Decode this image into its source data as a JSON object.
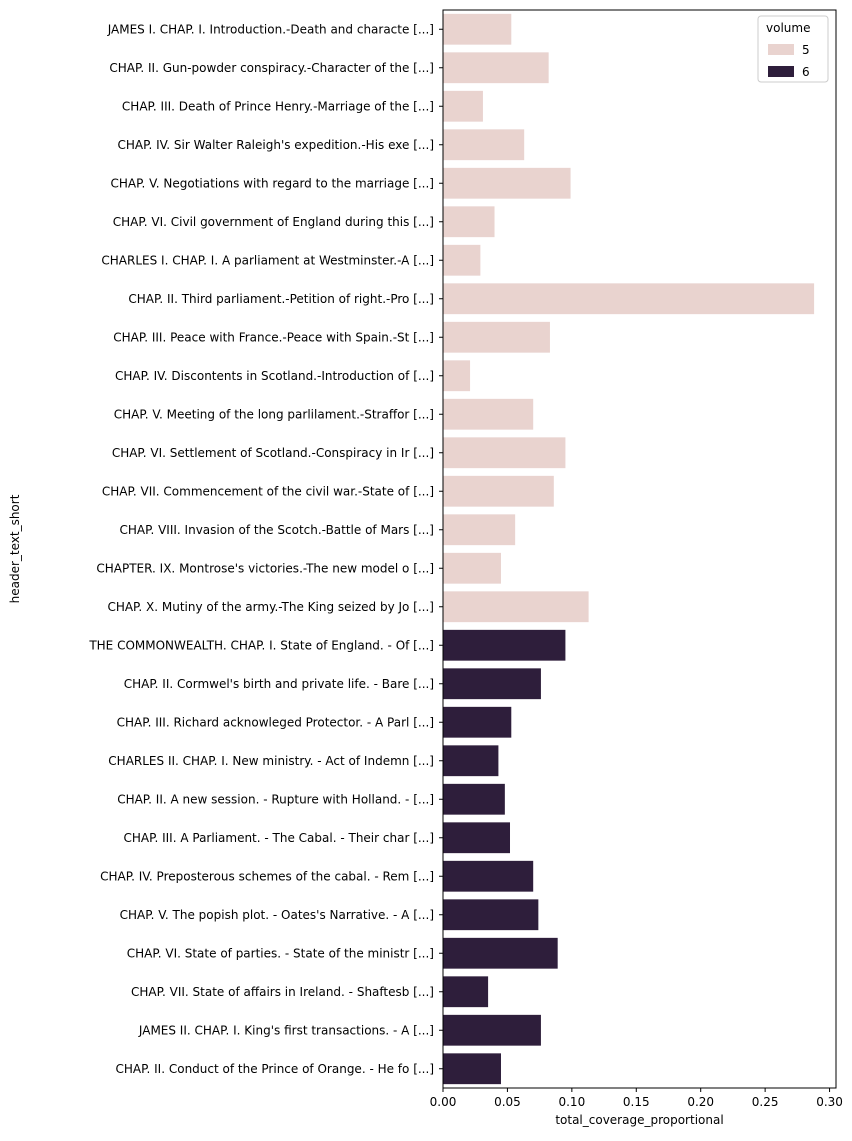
{
  "chart_data": {
    "type": "bar",
    "orientation": "horizontal",
    "xlabel": "total_coverage_proportional",
    "ylabel": "header_text_short",
    "xlim": [
      0,
      0.305
    ],
    "xticks": [
      0.0,
      0.05,
      0.1,
      0.15,
      0.2,
      0.25,
      0.3
    ],
    "xtick_labels": [
      "0.00",
      "0.05",
      "0.10",
      "0.15",
      "0.20",
      "0.25",
      "0.30"
    ],
    "grid": false,
    "legend": {
      "title": "volume",
      "position": "top-right",
      "entries": [
        {
          "label": "5",
          "color": "#e9d3cf"
        },
        {
          "label": "6",
          "color": "#2e1e3b"
        }
      ]
    },
    "categories": [
      "JAMES I. CHAP. I. Introduction.-Death and characte [...]",
      "CHAP. II. Gun-powder conspiracy.-Character of the  [...]",
      "CHAP. III. Death of Prince Henry.-Marriage of the  [...]",
      "CHAP. IV. Sir Walter Raleigh's expedition.-His exe [...]",
      "CHAP. V. Negotiations with regard to the marriage  [...]",
      "CHAP. VI. Civil government of England during this  [...]",
      "CHARLES I. CHAP. I. A parliament at Westminster.-A [...]",
      "CHAP. II. Third parliament.-Petition of right.-Pro [...]",
      "CHAP. III. Peace with France.-Peace with Spain.-St [...]",
      "CHAP. IV. Discontents in Scotland.-Introduction of [...]",
      "CHAP. V. Meeting of the long parlilament.-Straffor [...]",
      "CHAP. VI. Settlement of Scotland.-Conspiracy in Ir [...]",
      "CHAP. VII. Commencement of the civil war.-State of [...]",
      "CHAP. VIII. Invasion of the Scotch.-Battle of Mars [...]",
      "CHAPTER. IX. Montrose's victories.-The new model o [...]",
      "CHAP. X. Mutiny of the army.-The King seized by Jo [...]",
      "THE COMMONWEALTH. CHAP. I. State of England. - Of  [...]",
      "CHAP. II. Cormwel's birth and private life. - Bare [...]",
      "CHAP. III. Richard acknowleged Protector. - A Parl [...]",
      "CHARLES II. CHAP. I. New ministry. - Act of Indemn [...]",
      "CHAP. II. A new session. - Rupture with Holland. - [...]",
      "CHAP. III. A Parliament. - The Cabal. - Their char [...]",
      "CHAP. IV. Preposterous schemes of the cabal. - Rem [...]",
      "CHAP. V. The popish plot. - Oates's Narrative. - A [...]",
      "CHAP. VI. State of parties. - State of the ministr [...]",
      "CHAP. VII. State of affairs in Ireland. - Shaftesb [...]",
      "JAMES II. CHAP. I. King's first transactions. - A  [...]",
      "CHAP. II. Conduct of the Prince of Orange. - He fo [...]"
    ],
    "values": [
      0.053,
      0.082,
      0.031,
      0.063,
      0.099,
      0.04,
      0.029,
      0.288,
      0.083,
      0.021,
      0.07,
      0.095,
      0.086,
      0.056,
      0.045,
      0.113,
      0.095,
      0.076,
      0.053,
      0.043,
      0.048,
      0.052,
      0.07,
      0.074,
      0.089,
      0.035,
      0.076,
      0.045
    ],
    "volume": [
      "5",
      "5",
      "5",
      "5",
      "5",
      "5",
      "5",
      "5",
      "5",
      "5",
      "5",
      "5",
      "5",
      "5",
      "5",
      "5",
      "6",
      "6",
      "6",
      "6",
      "6",
      "6",
      "6",
      "6",
      "6",
      "6",
      "6",
      "6"
    ]
  }
}
